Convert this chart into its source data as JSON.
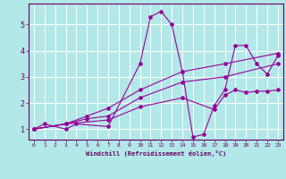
{
  "xlabel": "Windchill (Refroidissement éolien,°C)",
  "ylabel": "",
  "bg_color": "#b2e8e8",
  "grid_color": "#ffffff",
  "line_color": "#990099",
  "xlim": [
    -0.5,
    23.5
  ],
  "ylim": [
    0.6,
    5.8
  ],
  "xticks": [
    0,
    1,
    2,
    3,
    4,
    5,
    6,
    7,
    8,
    9,
    10,
    11,
    12,
    13,
    14,
    15,
    16,
    17,
    18,
    19,
    20,
    21,
    22,
    23
  ],
  "yticks": [
    1,
    2,
    3,
    4,
    5
  ],
  "series": [
    {
      "x": [
        0,
        1,
        3,
        4,
        7,
        10,
        11,
        12,
        13,
        14,
        15,
        16,
        17,
        18,
        19,
        20,
        21,
        22,
        23
      ],
      "y": [
        1.0,
        1.2,
        1.0,
        1.2,
        1.1,
        3.5,
        5.3,
        5.5,
        5.0,
        3.2,
        0.7,
        0.8,
        1.9,
        2.5,
        4.2,
        4.2,
        3.5,
        3.1,
        3.8
      ]
    },
    {
      "x": [
        0,
        3,
        5,
        7,
        10,
        14,
        18,
        23
      ],
      "y": [
        1.0,
        1.2,
        1.5,
        1.8,
        2.5,
        3.2,
        3.5,
        3.9
      ]
    },
    {
      "x": [
        0,
        3,
        5,
        7,
        10,
        14,
        18,
        23
      ],
      "y": [
        1.0,
        1.2,
        1.4,
        1.5,
        2.2,
        2.8,
        3.0,
        3.5
      ]
    },
    {
      "x": [
        0,
        3,
        7,
        10,
        14,
        17,
        18,
        19,
        20,
        21,
        22,
        23
      ],
      "y": [
        1.0,
        1.2,
        1.35,
        1.85,
        2.2,
        1.75,
        2.3,
        2.5,
        2.4,
        2.45,
        2.45,
        2.5
      ]
    }
  ]
}
